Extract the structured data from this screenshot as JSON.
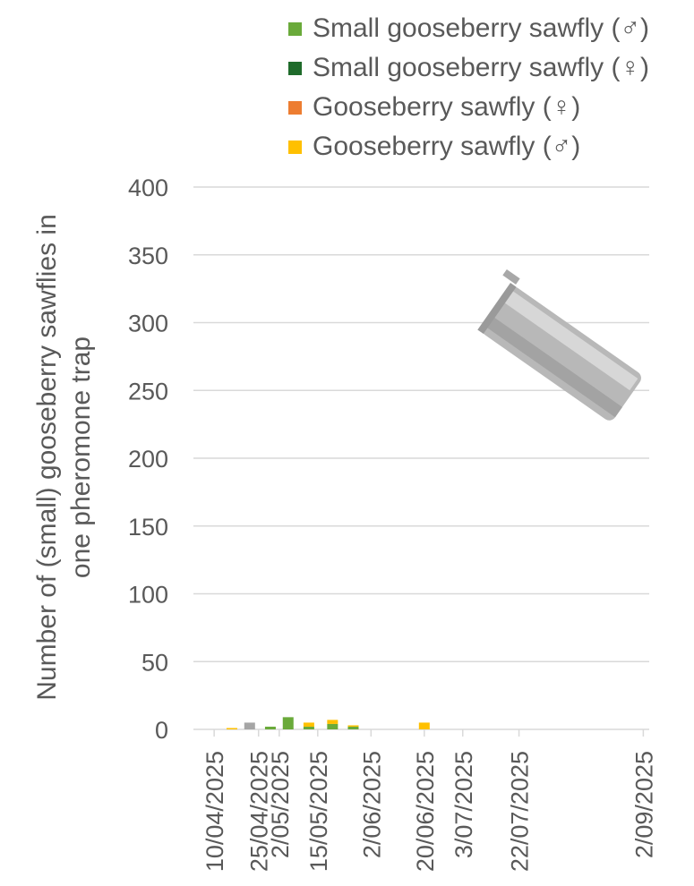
{
  "chart_data": {
    "type": "bar",
    "stacked": true,
    "ylabel": "Number of (small) gooseberry sawflies in one pheromone trap",
    "ylim": [
      0,
      400
    ],
    "yticks": [
      0,
      50,
      100,
      150,
      200,
      250,
      300,
      350,
      400
    ],
    "x_tick_labels": [
      "10/04/2025",
      "25/04/2025",
      "2/05/2025",
      "15/05/2025",
      "2/06/2025",
      "20/06/2025",
      "3/07/2025",
      "22/07/2025",
      "2/09/2025"
    ],
    "xlim": [
      "2025-04-03",
      "2025-09-04"
    ],
    "grid": "horizontal",
    "legend_position": "top-right",
    "series": [
      {
        "name": "Small gooseberry sawfly (♂)",
        "color": "#6aaa3a",
        "points": [
          [
            "2025-04-29",
            2
          ],
          [
            "2025-05-05",
            9
          ],
          [
            "2025-05-12",
            2
          ],
          [
            "2025-05-20",
            4
          ],
          [
            "2025-05-27",
            2
          ]
        ]
      },
      {
        "name": "Small gooseberry sawfly  (♀)",
        "color": "#1f6b2b",
        "points": []
      },
      {
        "name": "Gooseberry sawfly (♀)",
        "color": "#ed7d31",
        "points": []
      },
      {
        "name": "Gooseberry sawfly (♂)",
        "color": "#ffc000",
        "points": [
          [
            "2025-04-16",
            1
          ],
          [
            "2025-05-12",
            3
          ],
          [
            "2025-05-20",
            3
          ],
          [
            "2025-05-27",
            1
          ],
          [
            "2025-06-20",
            5
          ]
        ]
      },
      {
        "name": "",
        "color": "#a5a5a5",
        "points": [
          [
            "2025-04-22",
            5
          ]
        ]
      }
    ]
  }
}
